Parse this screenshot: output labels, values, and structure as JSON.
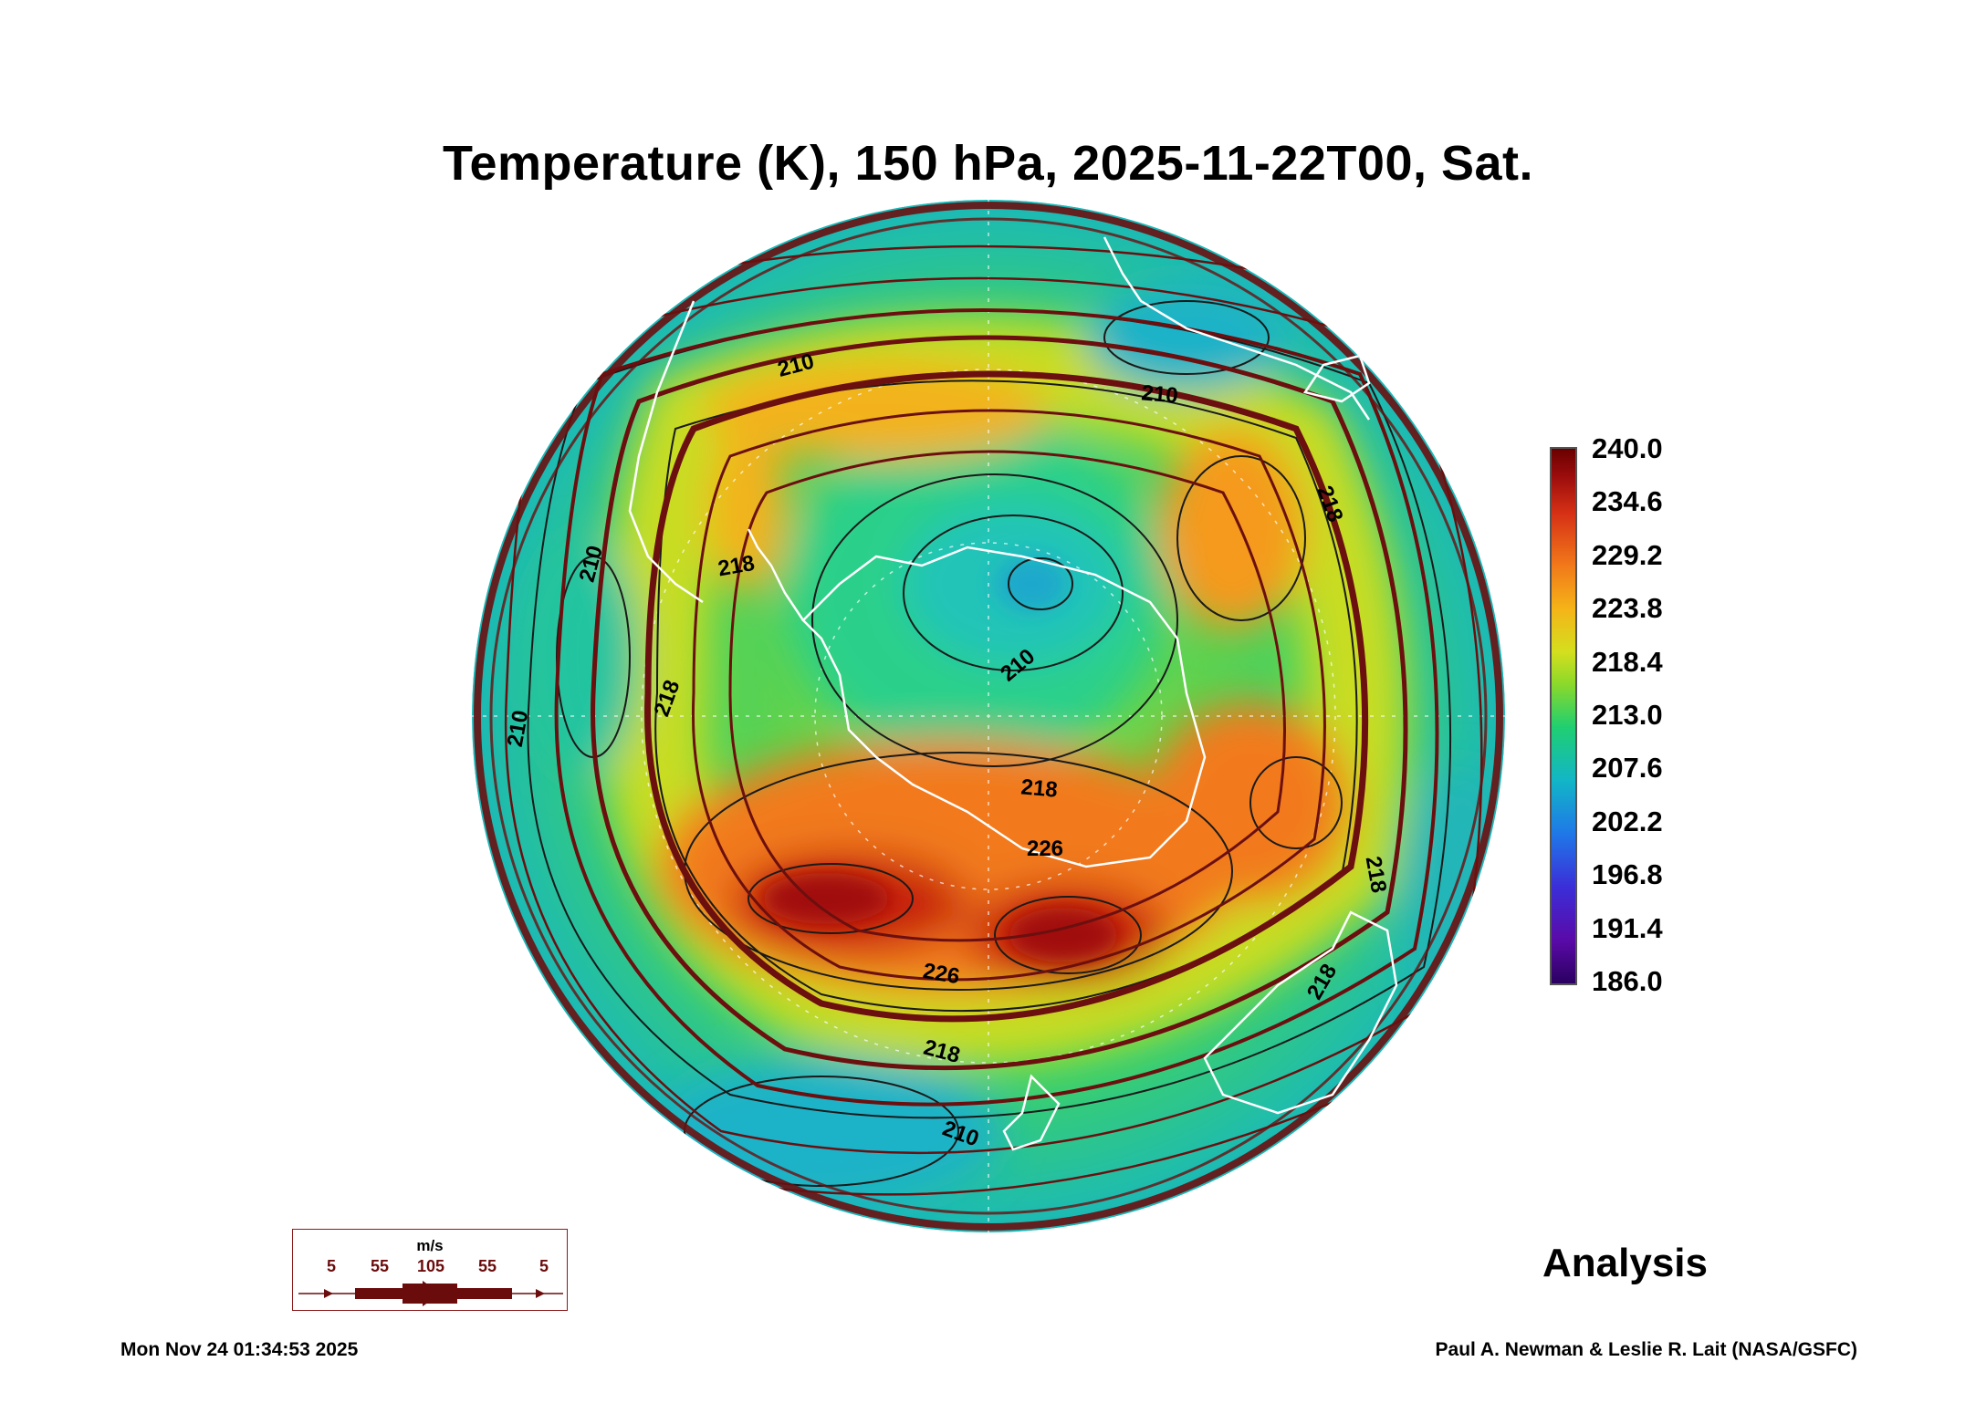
{
  "title": "Temperature (K), 150 hPa, 2025-11-22T00, Sat.",
  "colorbar": {
    "ticks": [
      "240.0",
      "234.6",
      "229.2",
      "223.8",
      "218.4",
      "213.0",
      "207.6",
      "202.2",
      "196.8",
      "191.4",
      "186.0"
    ],
    "min": 186.0,
    "max": 240.0,
    "colors": [
      "#2a0060",
      "#3b2ed8",
      "#12b6c6",
      "#20cf70",
      "#d4df1e",
      "#f27a1a",
      "#d63015",
      "#6a0000"
    ]
  },
  "contour_labels": [
    "210",
    "210",
    "210",
    "210",
    "210",
    "218",
    "218",
    "218",
    "218",
    "218",
    "226",
    "226",
    "218",
    "210",
    "218"
  ],
  "wind_legend": {
    "units": "m/s",
    "labels": [
      "5",
      "55",
      "105",
      "55",
      "5"
    ]
  },
  "analysis_label": "Analysis",
  "timestamp": "Mon Nov 24 01:34:53 2025",
  "credit": "Paul A. Newman & Leslie R. Lait (NASA/GSFC)",
  "colors": {
    "streamline": "#6b0f0f",
    "coast": "#ffffff",
    "contour": "#1a1a1a"
  }
}
